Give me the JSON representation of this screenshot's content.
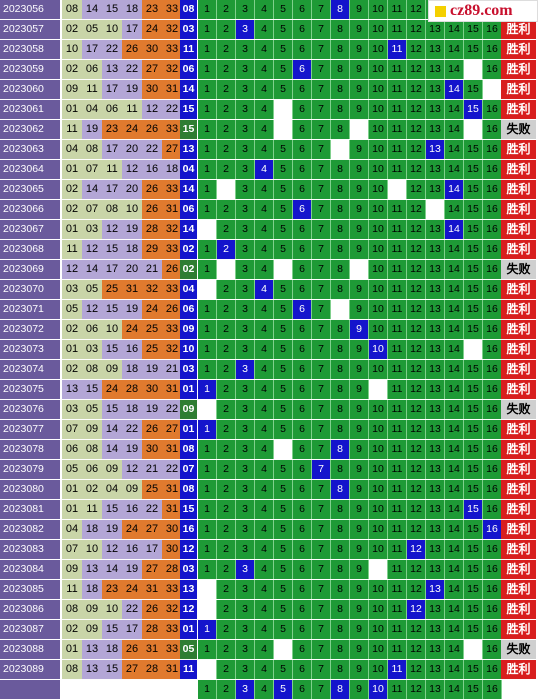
{
  "logo": {
    "text": "cz89.com",
    "color": "#c8102e"
  },
  "colors": {
    "issue_bg": "#6a5a9c",
    "green": "#1e9a36",
    "blue": "#1414cc",
    "win": "#d81e1e",
    "lose": "#cfcfcf",
    "hl_orange": "#e07a2e",
    "hl_purple": "#b3a6d6",
    "hl_sage": "#c9d5a8"
  },
  "win_label": "胜利",
  "lose_label": "失败",
  "rows": [
    {
      "issue": "2023056",
      "nums": [
        "08",
        "14",
        "15",
        "18",
        "23",
        "33"
      ],
      "col7": "08",
      "pos": 8,
      "white": [],
      "result": "win"
    },
    {
      "issue": "2023057",
      "nums": [
        "02",
        "05",
        "10",
        "17",
        "24",
        "32"
      ],
      "col7": "03",
      "pos": 3,
      "white": [],
      "result": "win"
    },
    {
      "issue": "2023058",
      "nums": [
        "10",
        "17",
        "22",
        "26",
        "30",
        "33"
      ],
      "col7": "11",
      "pos": 11,
      "white": [],
      "result": "win"
    },
    {
      "issue": "2023059",
      "nums": [
        "02",
        "06",
        "13",
        "22",
        "27",
        "32"
      ],
      "col7": "06",
      "pos": 6,
      "white": [
        15
      ],
      "result": "win"
    },
    {
      "issue": "2023060",
      "nums": [
        "09",
        "11",
        "17",
        "19",
        "30",
        "31"
      ],
      "col7": "14",
      "pos": 14,
      "white": [
        16
      ],
      "result": "win"
    },
    {
      "issue": "2023061",
      "nums": [
        "01",
        "04",
        "06",
        "11",
        "12",
        "22"
      ],
      "col7": "15",
      "pos": 15,
      "white": [
        5
      ],
      "result": "win"
    },
    {
      "issue": "2023062",
      "nums": [
        "11",
        "19",
        "23",
        "24",
        "26",
        "33"
      ],
      "col7": "15",
      "pos": 0,
      "white": [
        5,
        9,
        15
      ],
      "result": "lose"
    },
    {
      "issue": "2023063",
      "nums": [
        "04",
        "08",
        "17",
        "20",
        "22",
        "27"
      ],
      "col7": "13",
      "pos": 13,
      "white": [
        8
      ],
      "result": "win"
    },
    {
      "issue": "2023064",
      "nums": [
        "01",
        "07",
        "11",
        "12",
        "16",
        "18"
      ],
      "col7": "04",
      "pos": 4,
      "white": [],
      "result": "win"
    },
    {
      "issue": "2023065",
      "nums": [
        "02",
        "14",
        "17",
        "20",
        "26",
        "33"
      ],
      "col7": "14",
      "pos": 14,
      "white": [
        2,
        11
      ],
      "result": "win"
    },
    {
      "issue": "2023066",
      "nums": [
        "02",
        "07",
        "08",
        "10",
        "26",
        "31"
      ],
      "col7": "06",
      "pos": 6,
      "white": [
        13
      ],
      "result": "win"
    },
    {
      "issue": "2023067",
      "nums": [
        "01",
        "03",
        "12",
        "19",
        "28",
        "32"
      ],
      "col7": "14",
      "pos": 14,
      "white": [
        1
      ],
      "result": "win"
    },
    {
      "issue": "2023068",
      "nums": [
        "11",
        "12",
        "15",
        "18",
        "29",
        "33"
      ],
      "col7": "02",
      "pos": 2,
      "white": [],
      "result": "win"
    },
    {
      "issue": "2023069",
      "nums": [
        "12",
        "14",
        "17",
        "20",
        "21",
        "26"
      ],
      "col7": "02",
      "pos": 0,
      "white": [
        2,
        5,
        9
      ],
      "result": "lose"
    },
    {
      "issue": "2023070",
      "nums": [
        "03",
        "05",
        "25",
        "31",
        "32",
        "33"
      ],
      "col7": "04",
      "pos": 4,
      "white": [
        1
      ],
      "result": "win"
    },
    {
      "issue": "2023071",
      "nums": [
        "05",
        "12",
        "15",
        "19",
        "24",
        "26"
      ],
      "col7": "06",
      "pos": 6,
      "white": [
        8
      ],
      "result": "win"
    },
    {
      "issue": "2023072",
      "nums": [
        "02",
        "06",
        "10",
        "24",
        "25",
        "33"
      ],
      "col7": "09",
      "pos": 9,
      "white": [],
      "result": "win"
    },
    {
      "issue": "2023073",
      "nums": [
        "01",
        "03",
        "15",
        "16",
        "25",
        "32"
      ],
      "col7": "10",
      "pos": 10,
      "white": [
        15
      ],
      "result": "win"
    },
    {
      "issue": "2023074",
      "nums": [
        "02",
        "08",
        "09",
        "18",
        "19",
        "21"
      ],
      "col7": "03",
      "pos": 3,
      "white": [],
      "result": "win"
    },
    {
      "issue": "2023075",
      "nums": [
        "13",
        "15",
        "24",
        "28",
        "30",
        "31"
      ],
      "col7": "01",
      "pos": 1,
      "white": [
        10
      ],
      "result": "win"
    },
    {
      "issue": "2023076",
      "nums": [
        "03",
        "05",
        "15",
        "18",
        "19",
        "22"
      ],
      "col7": "09",
      "pos": 0,
      "white": [
        1
      ],
      "result": "lose"
    },
    {
      "issue": "2023077",
      "nums": [
        "07",
        "09",
        "14",
        "22",
        "26",
        "27"
      ],
      "col7": "01",
      "pos": 1,
      "white": [],
      "result": "win"
    },
    {
      "issue": "2023078",
      "nums": [
        "06",
        "08",
        "14",
        "19",
        "30",
        "31"
      ],
      "col7": "08",
      "pos": 8,
      "white": [
        5
      ],
      "result": "win"
    },
    {
      "issue": "2023079",
      "nums": [
        "05",
        "06",
        "09",
        "12",
        "21",
        "22"
      ],
      "col7": "07",
      "pos": 7,
      "white": [],
      "result": "win"
    },
    {
      "issue": "2023080",
      "nums": [
        "01",
        "02",
        "04",
        "09",
        "25",
        "31"
      ],
      "col7": "08",
      "pos": 8,
      "white": [],
      "result": "win"
    },
    {
      "issue": "2023081",
      "nums": [
        "01",
        "11",
        "15",
        "16",
        "22",
        "31"
      ],
      "col7": "15",
      "pos": 15,
      "white": [],
      "result": "win"
    },
    {
      "issue": "2023082",
      "nums": [
        "04",
        "18",
        "19",
        "24",
        "27",
        "30"
      ],
      "col7": "16",
      "pos": 16,
      "white": [],
      "result": "win"
    },
    {
      "issue": "2023083",
      "nums": [
        "07",
        "10",
        "12",
        "16",
        "17",
        "30"
      ],
      "col7": "12",
      "pos": 12,
      "white": [],
      "result": "win"
    },
    {
      "issue": "2023084",
      "nums": [
        "09",
        "13",
        "14",
        "19",
        "27",
        "28"
      ],
      "col7": "03",
      "pos": 3,
      "white": [
        10
      ],
      "result": "win"
    },
    {
      "issue": "2023085",
      "nums": [
        "11",
        "18",
        "23",
        "24",
        "31",
        "33"
      ],
      "col7": "13",
      "pos": 13,
      "white": [
        1
      ],
      "result": "win"
    },
    {
      "issue": "2023086",
      "nums": [
        "08",
        "09",
        "10",
        "22",
        "26",
        "32"
      ],
      "col7": "12",
      "pos": 12,
      "white": [
        1
      ],
      "result": "win"
    },
    {
      "issue": "2023087",
      "nums": [
        "02",
        "09",
        "15",
        "17",
        "28",
        "33"
      ],
      "col7": "01",
      "pos": 1,
      "white": [],
      "result": "win"
    },
    {
      "issue": "2023088",
      "nums": [
        "01",
        "13",
        "18",
        "26",
        "31",
        "33"
      ],
      "col7": "05",
      "pos": 0,
      "white": [
        5,
        15
      ],
      "result": "lose"
    },
    {
      "issue": "2023089",
      "nums": [
        "08",
        "13",
        "15",
        "27",
        "28",
        "31"
      ],
      "col7": "11",
      "pos": 11,
      "white": [
        1
      ],
      "result": "win"
    }
  ],
  "last_row": {
    "issue": "",
    "pos": [
      3,
      5,
      8,
      10
    ],
    "white": []
  }
}
